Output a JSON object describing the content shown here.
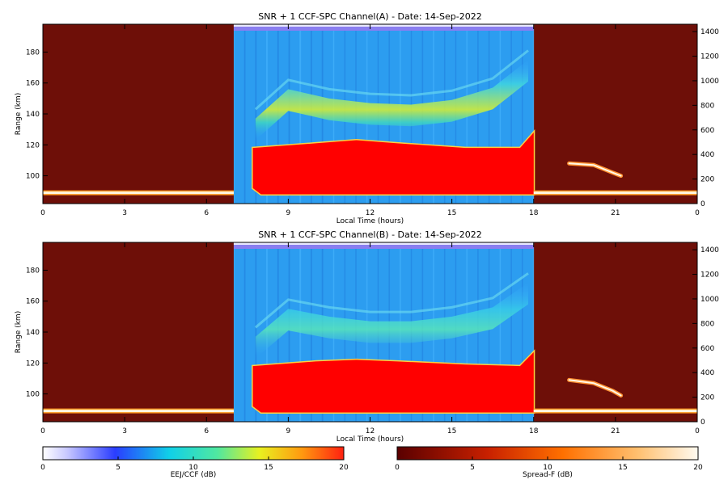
{
  "chart_data": [
    {
      "type": "heatmap",
      "title": "SNR + 1 CCF-SPC Channel(A) - Date: 14-Sep-2022",
      "xlabel": "Local Time (hours)",
      "ylabel": "Range (km)",
      "x_ticks": [
        "0",
        "3",
        "6",
        "9",
        "12",
        "15",
        "18",
        "21",
        "0"
      ],
      "y_ticks": [
        100,
        120,
        140,
        160,
        180
      ],
      "y2_ticks": [
        0,
        200,
        400,
        600,
        800,
        1000,
        1200,
        1400
      ],
      "xlim": [
        0,
        24
      ],
      "ylim": [
        82,
        198
      ],
      "y2lim": [
        0,
        1460
      ],
      "daytime_window": [
        7,
        18
      ],
      "night_layer": {
        "range_km": 89,
        "ranges_hours": [
          [
            0,
            7
          ],
          [
            18,
            24
          ]
        ]
      },
      "eej_layer": {
        "bottom_km": 88,
        "top_km": [
          [
            7.7,
            118
          ],
          [
            10,
            121
          ],
          [
            11.5,
            123
          ],
          [
            13,
            121
          ],
          [
            15.5,
            118
          ],
          [
            17.5,
            118
          ],
          [
            18,
            128
          ]
        ]
      },
      "arc_layer": {
        "top_km": [
          [
            7.8,
            137
          ],
          [
            9,
            156
          ],
          [
            10.5,
            150
          ],
          [
            12,
            147
          ],
          [
            13.5,
            146
          ],
          [
            15,
            149
          ],
          [
            16.5,
            157
          ],
          [
            17.8,
            175
          ]
        ]
      },
      "streak": {
        "points": [
          [
            19.3,
            108
          ],
          [
            20.2,
            107
          ],
          [
            20.9,
            102
          ],
          [
            21.2,
            100
          ]
        ]
      }
    },
    {
      "type": "heatmap",
      "title": "SNR + 1 CCF-SPC Channel(B) - Date: 14-Sep-2022",
      "xlabel": "Local Time (hours)",
      "ylabel": "Range (km)",
      "x_ticks": [
        "0",
        "3",
        "6",
        "9",
        "12",
        "15",
        "18",
        "21",
        "0"
      ],
      "y_ticks": [
        100,
        120,
        140,
        160,
        180
      ],
      "y2_ticks": [
        0,
        200,
        400,
        600,
        800,
        1000,
        1200,
        1400
      ],
      "xlim": [
        0,
        24
      ],
      "ylim": [
        82,
        198
      ],
      "y2lim": [
        0,
        1460
      ],
      "daytime_window": [
        7,
        18
      ],
      "night_layer": {
        "range_km": 89,
        "ranges_hours": [
          [
            0,
            7
          ],
          [
            18,
            24
          ]
        ]
      },
      "eej_layer": {
        "bottom_km": 88,
        "top_km": [
          [
            7.7,
            118
          ],
          [
            10,
            121
          ],
          [
            11.5,
            122
          ],
          [
            13,
            121
          ],
          [
            15.5,
            119
          ],
          [
            17.5,
            118
          ],
          [
            18,
            127
          ]
        ]
      },
      "arc_layer": {
        "top_km": [
          [
            7.8,
            137
          ],
          [
            9,
            155
          ],
          [
            10.5,
            150
          ],
          [
            12,
            147
          ],
          [
            13.5,
            147
          ],
          [
            15,
            150
          ],
          [
            16.5,
            156
          ],
          [
            17.8,
            172
          ]
        ]
      },
      "streak": {
        "points": [
          [
            19.3,
            109
          ],
          [
            20.2,
            107
          ],
          [
            20.9,
            102
          ],
          [
            21.2,
            99
          ]
        ]
      }
    }
  ],
  "colorbars": [
    {
      "label": "EEJ/CCF (dB)",
      "ticks": [
        "0",
        "5",
        "10",
        "15",
        "20"
      ],
      "range": [
        0,
        20
      ],
      "palette": "rainbow"
    },
    {
      "label": "Spread-F (dB)",
      "ticks": [
        "0",
        "5",
        "10",
        "15",
        "20"
      ],
      "range": [
        0,
        20
      ],
      "palette": "heat"
    }
  ]
}
